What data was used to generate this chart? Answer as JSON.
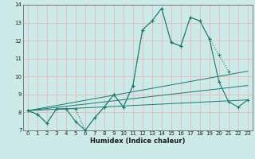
{
  "title": "",
  "xlabel": "Humidex (Indice chaleur)",
  "xlim": [
    -0.5,
    23.5
  ],
  "ylim": [
    7,
    14
  ],
  "xticks": [
    0,
    1,
    2,
    3,
    4,
    5,
    6,
    7,
    8,
    9,
    10,
    11,
    12,
    13,
    14,
    15,
    16,
    17,
    18,
    19,
    20,
    21,
    22,
    23
  ],
  "yticks": [
    7,
    8,
    9,
    10,
    11,
    12,
    13,
    14
  ],
  "background_color": "#cceae7",
  "grid_color": "#e8b8b8",
  "line_color": "#1a7a6e",
  "series_main": {
    "x": [
      0,
      1,
      2,
      3,
      4,
      5,
      6,
      7,
      8,
      9,
      10,
      11,
      12,
      13,
      14,
      15,
      16,
      17,
      18,
      19,
      20,
      21,
      22,
      23
    ],
    "y": [
      8.1,
      7.9,
      7.4,
      8.2,
      8.2,
      7.5,
      7.0,
      7.7,
      8.3,
      9.0,
      8.3,
      9.5,
      12.6,
      13.1,
      13.8,
      11.9,
      11.7,
      13.3,
      13.1,
      12.1,
      9.7,
      8.6,
      8.3,
      8.7
    ]
  },
  "series_smooth": {
    "x": [
      0,
      1,
      2,
      3,
      4,
      5,
      6,
      7,
      8,
      9,
      10,
      11,
      12,
      13,
      14,
      15,
      16,
      17,
      18,
      19,
      20,
      21,
      22,
      23
    ],
    "y": [
      8.1,
      7.9,
      7.4,
      8.2,
      8.2,
      8.2,
      7.0,
      7.7,
      8.3,
      9.0,
      8.3,
      9.5,
      12.6,
      13.1,
      13.8,
      11.9,
      11.7,
      13.3,
      13.1,
      12.1,
      11.2,
      10.3,
      null,
      null
    ]
  },
  "trend_lines": [
    {
      "x": [
        0,
        23
      ],
      "y": [
        8.1,
        10.3
      ]
    },
    {
      "x": [
        0,
        23
      ],
      "y": [
        8.1,
        9.5
      ]
    },
    {
      "x": [
        0,
        23
      ],
      "y": [
        8.1,
        8.7
      ]
    }
  ]
}
